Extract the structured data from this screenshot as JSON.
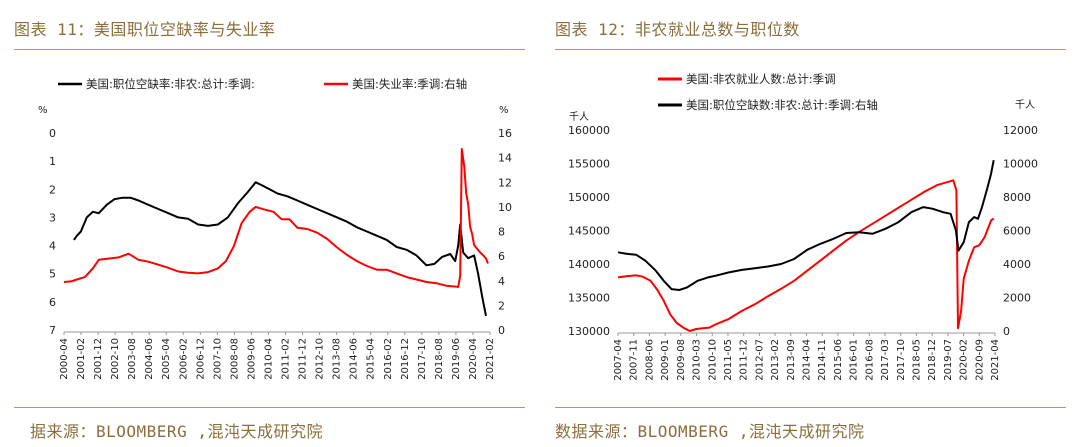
{
  "panels": [
    {
      "title": "图表 11：美国职位空缺率与失业率",
      "source": "据来源：BLOOMBERG ,混沌天成研究院",
      "unit_left": "%",
      "unit_right": "%"
    },
    {
      "title": "图表 12：非农就业总数与职位数",
      "source": "数据来源：BLOOMBERG ,混沌天成研究院",
      "unit_left": "千人",
      "unit_right": "千人"
    }
  ],
  "chart_data": [
    {
      "type": "line",
      "title": "图表 11：美国职位空缺率与失业率",
      "x_tick_labels": [
        "2000-04",
        "2001-02",
        "2001-12",
        "2002-10",
        "2003-08",
        "2004-06",
        "2005-04",
        "2006-02",
        "2006-12",
        "2007-10",
        "2008-08",
        "2009-06",
        "2010-04",
        "2011-02",
        "2011-12",
        "2012-10",
        "2013-08",
        "2014-06",
        "2015-04",
        "2016-02",
        "2016-12",
        "2017-10",
        "2018-08",
        "2019-06",
        "2020-04",
        "2021-02"
      ],
      "y_left": {
        "min": 0,
        "max": 7,
        "inverted": true,
        "ticks": [
          0,
          1,
          2,
          3,
          4,
          5,
          6,
          7
        ],
        "unit": "%"
      },
      "y_right": {
        "min": 0,
        "max": 16,
        "ticks": [
          0,
          2,
          4,
          6,
          8,
          10,
          12,
          14,
          16
        ],
        "unit": "%"
      },
      "grid": false,
      "legend_position": "top",
      "series": [
        {
          "name": "美国:职位空缺率:非农:总计:季调:",
          "color": "#000000",
          "axis": "left",
          "points": [
            [
              2000.75,
              3.8
            ],
            [
              2000.9,
              3.65
            ],
            [
              2001.1,
              3.5
            ],
            [
              2001.4,
              3.0
            ],
            [
              2001.7,
              2.8
            ],
            [
              2002.0,
              2.85
            ],
            [
              2002.4,
              2.55
            ],
            [
              2002.8,
              2.35
            ],
            [
              2003.2,
              2.3
            ],
            [
              2003.6,
              2.3
            ],
            [
              2004.0,
              2.4
            ],
            [
              2004.5,
              2.55
            ],
            [
              2005.0,
              2.7
            ],
            [
              2005.5,
              2.85
            ],
            [
              2006.0,
              3.0
            ],
            [
              2006.5,
              3.05
            ],
            [
              2007.0,
              3.25
            ],
            [
              2007.5,
              3.3
            ],
            [
              2008.0,
              3.25
            ],
            [
              2008.5,
              3.0
            ],
            [
              2009.0,
              2.5
            ],
            [
              2009.5,
              2.1
            ],
            [
              2009.9,
              1.75
            ],
            [
              2010.2,
              1.85
            ],
            [
              2010.6,
              2.0
            ],
            [
              2011.0,
              2.15
            ],
            [
              2011.5,
              2.25
            ],
            [
              2012.0,
              2.4
            ],
            [
              2012.5,
              2.55
            ],
            [
              2013.0,
              2.7
            ],
            [
              2013.5,
              2.85
            ],
            [
              2014.0,
              3.0
            ],
            [
              2014.5,
              3.15
            ],
            [
              2015.0,
              3.35
            ],
            [
              2015.5,
              3.5
            ],
            [
              2016.0,
              3.65
            ],
            [
              2016.5,
              3.8
            ],
            [
              2017.0,
              4.05
            ],
            [
              2017.5,
              4.15
            ],
            [
              2018.0,
              4.35
            ],
            [
              2018.5,
              4.7
            ],
            [
              2018.9,
              4.65
            ],
            [
              2019.3,
              4.4
            ],
            [
              2019.7,
              4.3
            ],
            [
              2019.95,
              4.55
            ],
            [
              2020.1,
              4.0
            ],
            [
              2020.2,
              3.25
            ],
            [
              2020.35,
              4.25
            ],
            [
              2020.6,
              4.45
            ],
            [
              2020.9,
              4.35
            ],
            [
              2021.1,
              5.0
            ],
            [
              2021.3,
              5.8
            ],
            [
              2021.5,
              6.5
            ]
          ]
        },
        {
          "name": "美国:失业率:季调:右轴",
          "color": "#ff0000",
          "axis": "right",
          "points": [
            [
              2000.25,
              3.9
            ],
            [
              2000.6,
              3.95
            ],
            [
              2000.9,
              4.1
            ],
            [
              2001.3,
              4.3
            ],
            [
              2001.7,
              5.0
            ],
            [
              2002.0,
              5.7
            ],
            [
              2002.5,
              5.8
            ],
            [
              2003.0,
              5.9
            ],
            [
              2003.5,
              6.2
            ],
            [
              2004.0,
              5.7
            ],
            [
              2004.5,
              5.55
            ],
            [
              2005.0,
              5.3
            ],
            [
              2005.5,
              5.05
            ],
            [
              2006.0,
              4.75
            ],
            [
              2006.5,
              4.65
            ],
            [
              2007.0,
              4.6
            ],
            [
              2007.5,
              4.7
            ],
            [
              2008.0,
              5.0
            ],
            [
              2008.4,
              5.6
            ],
            [
              2008.8,
              6.8
            ],
            [
              2009.2,
              8.7
            ],
            [
              2009.6,
              9.6
            ],
            [
              2009.9,
              10.0
            ],
            [
              2010.3,
              9.8
            ],
            [
              2010.8,
              9.6
            ],
            [
              2011.2,
              9.0
            ],
            [
              2011.6,
              9.0
            ],
            [
              2012.0,
              8.3
            ],
            [
              2012.5,
              8.2
            ],
            [
              2013.0,
              7.9
            ],
            [
              2013.5,
              7.4
            ],
            [
              2014.0,
              6.7
            ],
            [
              2014.5,
              6.1
            ],
            [
              2015.0,
              5.6
            ],
            [
              2015.5,
              5.2
            ],
            [
              2016.0,
              4.9
            ],
            [
              2016.5,
              4.9
            ],
            [
              2017.0,
              4.6
            ],
            [
              2017.5,
              4.3
            ],
            [
              2018.0,
              4.1
            ],
            [
              2018.5,
              3.9
            ],
            [
              2019.0,
              3.8
            ],
            [
              2019.5,
              3.6
            ],
            [
              2020.1,
              3.5
            ],
            [
              2020.2,
              4.4
            ],
            [
              2020.28,
              14.7
            ],
            [
              2020.4,
              13.3
            ],
            [
              2020.5,
              11.1
            ],
            [
              2020.6,
              10.2
            ],
            [
              2020.7,
              8.4
            ],
            [
              2020.8,
              7.8
            ],
            [
              2020.9,
              6.9
            ],
            [
              2021.0,
              6.7
            ],
            [
              2021.2,
              6.3
            ],
            [
              2021.4,
              6.0
            ],
            [
              2021.5,
              5.8
            ],
            [
              2021.6,
              5.4
            ]
          ]
        }
      ]
    },
    {
      "type": "line",
      "title": "图表 12：非农就业总数与职位数",
      "x_tick_labels": [
        "2007-04",
        "2007-11",
        "2008-06",
        "2009-01",
        "2009-08",
        "2010-03",
        "2010-10",
        "2011-05",
        "2011-12",
        "2012-07",
        "2013-02",
        "2013-09",
        "2014-04",
        "2014-11",
        "2015-06",
        "2016-01",
        "2016-08",
        "2017-03",
        "2017-10",
        "2018-05",
        "2018-12",
        "2019-07",
        "2020-02",
        "2020-09",
        "2021-04"
      ],
      "y_left": {
        "min": 130000,
        "max": 160000,
        "ticks": [
          130000,
          135000,
          140000,
          145000,
          150000,
          155000,
          160000
        ],
        "unit": "千人"
      },
      "y_right": {
        "min": 0,
        "max": 12000,
        "ticks": [
          0,
          2000,
          4000,
          6000,
          8000,
          10000,
          12000
        ],
        "unit": "千人"
      },
      "grid": false,
      "legend_position": "top",
      "series": [
        {
          "name": "美国:非农就业人数:总计:季调",
          "color": "#ff0000",
          "axis": "left",
          "points": [
            [
              2007.25,
              138000
            ],
            [
              2007.6,
              138200
            ],
            [
              2007.95,
              138300
            ],
            [
              2008.2,
              138100
            ],
            [
              2008.5,
              137500
            ],
            [
              2008.75,
              136200
            ],
            [
              2009.0,
              134500
            ],
            [
              2009.25,
              132500
            ],
            [
              2009.5,
              131200
            ],
            [
              2009.75,
              130500
            ],
            [
              2010.0,
              130000
            ],
            [
              2010.25,
              130300
            ],
            [
              2010.5,
              130400
            ],
            [
              2010.75,
              130500
            ],
            [
              2011.0,
              131000
            ],
            [
              2011.5,
              131800
            ],
            [
              2012.0,
              133000
            ],
            [
              2012.5,
              134000
            ],
            [
              2013.0,
              135200
            ],
            [
              2013.5,
              136300
            ],
            [
              2014.0,
              137500
            ],
            [
              2014.5,
              139000
            ],
            [
              2015.0,
              140500
            ],
            [
              2015.5,
              142000
            ],
            [
              2016.0,
              143500
            ],
            [
              2016.5,
              144800
            ],
            [
              2017.0,
              146000
            ],
            [
              2017.5,
              147200
            ],
            [
              2018.0,
              148400
            ],
            [
              2018.5,
              149600
            ],
            [
              2019.0,
              150800
            ],
            [
              2019.5,
              151800
            ],
            [
              2020.1,
              152500
            ],
            [
              2020.22,
              151000
            ],
            [
              2020.28,
              130400
            ],
            [
              2020.4,
              133000
            ],
            [
              2020.5,
              137800
            ],
            [
              2020.7,
              140500
            ],
            [
              2020.9,
              142500
            ],
            [
              2021.1,
              142800
            ],
            [
              2021.3,
              144000
            ],
            [
              2021.55,
              146500
            ],
            [
              2021.65,
              146800
            ]
          ]
        },
        {
          "name": "美国:职位空缺数:非农:总计:季调:右轴",
          "color": "#000000",
          "axis": "right",
          "points": [
            [
              2007.25,
              4700
            ],
            [
              2007.6,
              4600
            ],
            [
              2007.95,
              4550
            ],
            [
              2008.3,
              4200
            ],
            [
              2008.7,
              3600
            ],
            [
              2009.0,
              3000
            ],
            [
              2009.3,
              2500
            ],
            [
              2009.6,
              2450
            ],
            [
              2009.9,
              2600
            ],
            [
              2010.3,
              3000
            ],
            [
              2010.7,
              3200
            ],
            [
              2011.0,
              3300
            ],
            [
              2011.5,
              3500
            ],
            [
              2012.0,
              3650
            ],
            [
              2012.5,
              3750
            ],
            [
              2013.0,
              3850
            ],
            [
              2013.5,
              4000
            ],
            [
              2014.0,
              4300
            ],
            [
              2014.5,
              4850
            ],
            [
              2015.0,
              5200
            ],
            [
              2015.5,
              5500
            ],
            [
              2016.0,
              5850
            ],
            [
              2016.5,
              5900
            ],
            [
              2017.0,
              5800
            ],
            [
              2017.5,
              6100
            ],
            [
              2018.0,
              6500
            ],
            [
              2018.5,
              7100
            ],
            [
              2018.95,
              7400
            ],
            [
              2019.3,
              7300
            ],
            [
              2019.7,
              7100
            ],
            [
              2020.0,
              7000
            ],
            [
              2020.2,
              6000
            ],
            [
              2020.3,
              4800
            ],
            [
              2020.5,
              5300
            ],
            [
              2020.7,
              6500
            ],
            [
              2020.9,
              6800
            ],
            [
              2021.05,
              6700
            ],
            [
              2021.2,
              7400
            ],
            [
              2021.4,
              8500
            ],
            [
              2021.55,
              9400
            ],
            [
              2021.65,
              10200
            ]
          ]
        }
      ]
    }
  ]
}
